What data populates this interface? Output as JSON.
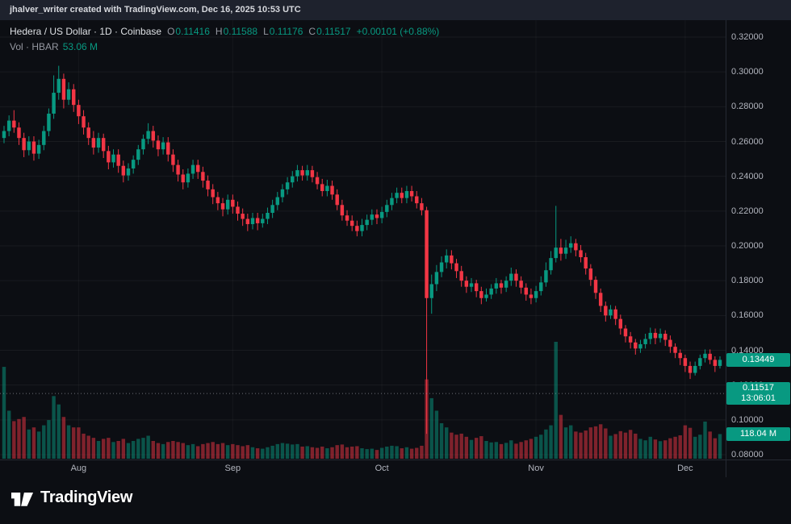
{
  "attribution": {
    "text": "jhalver_writer created with TradingView.com, Dec 16, 2025 10:53 UTC"
  },
  "legend": {
    "title": "Hedera / US Dollar · 1D · Coinbase",
    "ohlc": [
      {
        "label": "O",
        "value": "0.11416"
      },
      {
        "label": "H",
        "value": "0.11588"
      },
      {
        "label": "L",
        "value": "0.11176"
      },
      {
        "label": "C",
        "value": "0.11517"
      }
    ],
    "change": "+0.00101 (+0.88%)",
    "volume_title": "Vol · HBAR",
    "volume_value": "53.06 M"
  },
  "badges": {
    "upper_price": "0.13449",
    "last_price": "0.11517",
    "countdown": "13:06:01",
    "last_volume": "118.04 M"
  },
  "footer": {
    "brand": "TradingView"
  },
  "colors": {
    "up": "#089981",
    "down": "#f23645",
    "background": "#0c0e13",
    "strip": "#1e222d"
  },
  "chart_data": {
    "type": "candlestick",
    "symbol": "Hedera / US Dollar",
    "interval": "1D",
    "exchange": "Coinbase",
    "visible_range": "mid-July 2025 to early-December 2025",
    "last_price": 0.11517,
    "latest_bar": {
      "open": "0.11416",
      "high": "0.11588",
      "low": "0.11176",
      "close": "0.11517",
      "change": "+0.00101 (+0.88%)",
      "volume": "53.06 M"
    },
    "price_axis": {
      "min": 0.08,
      "max": 0.32,
      "tick_step": 0.02,
      "labels": [
        "0.32000",
        "0.30000",
        "0.28000",
        "0.26000",
        "0.24000",
        "0.22000",
        "0.20000",
        "0.18000",
        "0.16000",
        "0.14000",
        "0.12000",
        "0.10000",
        "0.08000"
      ]
    },
    "month_ticks": [
      {
        "label": "Aug",
        "index": 15
      },
      {
        "label": "Sep",
        "index": 46
      },
      {
        "label": "Oct",
        "index": 76
      },
      {
        "label": "Nov",
        "index": 107
      },
      {
        "label": "Dec",
        "index": 137
      }
    ],
    "volume_unit": "millions HBAR",
    "candles": {
      "columns": [
        "open",
        "high",
        "low",
        "close",
        "volume_m"
      ],
      "rows": [
        [
          0.262,
          0.269,
          0.259,
          0.266,
          440
        ],
        [
          0.266,
          0.275,
          0.263,
          0.272,
          230
        ],
        [
          0.272,
          0.278,
          0.265,
          0.268,
          180
        ],
        [
          0.268,
          0.271,
          0.258,
          0.262,
          190
        ],
        [
          0.262,
          0.265,
          0.251,
          0.255,
          200
        ],
        [
          0.255,
          0.263,
          0.252,
          0.26,
          140
        ],
        [
          0.26,
          0.263,
          0.249,
          0.253,
          150
        ],
        [
          0.253,
          0.261,
          0.25,
          0.258,
          130
        ],
        [
          0.258,
          0.269,
          0.255,
          0.266,
          160
        ],
        [
          0.266,
          0.279,
          0.263,
          0.276,
          185
        ],
        [
          0.276,
          0.298,
          0.273,
          0.288,
          300
        ],
        [
          0.288,
          0.3035,
          0.284,
          0.296,
          260
        ],
        [
          0.296,
          0.299,
          0.279,
          0.284,
          200
        ],
        [
          0.284,
          0.294,
          0.281,
          0.29,
          160
        ],
        [
          0.29,
          0.293,
          0.277,
          0.281,
          150
        ],
        [
          0.281,
          0.284,
          0.27,
          0.2745,
          150
        ],
        [
          0.2745,
          0.278,
          0.264,
          0.268,
          120
        ],
        [
          0.268,
          0.271,
          0.258,
          0.262,
          110
        ],
        [
          0.262,
          0.266,
          0.2525,
          0.2565,
          100
        ],
        [
          0.2565,
          0.265,
          0.2535,
          0.262,
          85
        ],
        [
          0.262,
          0.2645,
          0.2505,
          0.2545,
          95
        ],
        [
          0.2545,
          0.2575,
          0.244,
          0.248,
          100
        ],
        [
          0.248,
          0.2555,
          0.245,
          0.2525,
          80
        ],
        [
          0.2525,
          0.2555,
          0.242,
          0.246,
          85
        ],
        [
          0.246,
          0.249,
          0.2365,
          0.2405,
          95
        ],
        [
          0.2405,
          0.2475,
          0.2375,
          0.2445,
          75
        ],
        [
          0.2445,
          0.252,
          0.2415,
          0.2495,
          85
        ],
        [
          0.2495,
          0.258,
          0.2465,
          0.2555,
          95
        ],
        [
          0.2555,
          0.264,
          0.2525,
          0.2615,
          100
        ],
        [
          0.2615,
          0.2705,
          0.2585,
          0.266,
          110
        ],
        [
          0.266,
          0.269,
          0.2565,
          0.2605,
          85
        ],
        [
          0.2605,
          0.2635,
          0.2515,
          0.2555,
          75
        ],
        [
          0.2555,
          0.2625,
          0.2525,
          0.2595,
          70
        ],
        [
          0.2595,
          0.2625,
          0.2485,
          0.2525,
          80
        ],
        [
          0.2525,
          0.2555,
          0.2425,
          0.2465,
          85
        ],
        [
          0.2465,
          0.2495,
          0.237,
          0.241,
          80
        ],
        [
          0.241,
          0.244,
          0.2325,
          0.2365,
          75
        ],
        [
          0.2365,
          0.2445,
          0.2335,
          0.2415,
          65
        ],
        [
          0.2415,
          0.2495,
          0.2385,
          0.2465,
          70
        ],
        [
          0.2465,
          0.2495,
          0.2385,
          0.2425,
          60
        ],
        [
          0.2425,
          0.2455,
          0.2335,
          0.2375,
          70
        ],
        [
          0.2375,
          0.2405,
          0.2285,
          0.2325,
          75
        ],
        [
          0.2325,
          0.2355,
          0.224,
          0.228,
          80
        ],
        [
          0.228,
          0.231,
          0.2205,
          0.2245,
          70
        ],
        [
          0.2245,
          0.2275,
          0.217,
          0.221,
          75
        ],
        [
          0.221,
          0.2295,
          0.218,
          0.2265,
          65
        ],
        [
          0.2265,
          0.2295,
          0.2185,
          0.2225,
          70
        ],
        [
          0.2225,
          0.2255,
          0.2145,
          0.2185,
          65
        ],
        [
          0.2185,
          0.2215,
          0.2115,
          0.2155,
          60
        ],
        [
          0.2155,
          0.2185,
          0.2085,
          0.2125,
          65
        ],
        [
          0.2125,
          0.219,
          0.2095,
          0.216,
          55
        ],
        [
          0.216,
          0.219,
          0.209,
          0.213,
          50
        ],
        [
          0.213,
          0.2185,
          0.2105,
          0.2155,
          48
        ],
        [
          0.2155,
          0.222,
          0.2125,
          0.219,
          55
        ],
        [
          0.219,
          0.2265,
          0.216,
          0.2235,
          62
        ],
        [
          0.2235,
          0.231,
          0.2205,
          0.228,
          70
        ],
        [
          0.228,
          0.2355,
          0.225,
          0.2325,
          75
        ],
        [
          0.2325,
          0.2395,
          0.2295,
          0.2365,
          72
        ],
        [
          0.2365,
          0.243,
          0.2335,
          0.24,
          68
        ],
        [
          0.24,
          0.2465,
          0.237,
          0.2435,
          70
        ],
        [
          0.2435,
          0.246,
          0.2375,
          0.2405,
          58
        ],
        [
          0.2405,
          0.2465,
          0.2375,
          0.2435,
          60
        ],
        [
          0.2435,
          0.246,
          0.2365,
          0.2395,
          55
        ],
        [
          0.2395,
          0.2425,
          0.2325,
          0.2355,
          52
        ],
        [
          0.2355,
          0.2385,
          0.2285,
          0.2315,
          58
        ],
        [
          0.2315,
          0.238,
          0.2285,
          0.2345,
          50
        ],
        [
          0.2345,
          0.2375,
          0.2265,
          0.2295,
          55
        ],
        [
          0.2295,
          0.2325,
          0.2205,
          0.2235,
          65
        ],
        [
          0.2235,
          0.2265,
          0.2145,
          0.2175,
          68
        ],
        [
          0.2175,
          0.2205,
          0.2115,
          0.2145,
          55
        ],
        [
          0.2145,
          0.2175,
          0.2085,
          0.2115,
          58
        ],
        [
          0.2115,
          0.2145,
          0.2055,
          0.2085,
          60
        ],
        [
          0.2085,
          0.2155,
          0.2055,
          0.212,
          50
        ],
        [
          0.212,
          0.218,
          0.209,
          0.215,
          46
        ],
        [
          0.215,
          0.221,
          0.212,
          0.218,
          48
        ],
        [
          0.218,
          0.221,
          0.2125,
          0.216,
          42
        ],
        [
          0.216,
          0.2225,
          0.213,
          0.2195,
          52
        ],
        [
          0.2195,
          0.2265,
          0.2165,
          0.2235,
          58
        ],
        [
          0.2235,
          0.2305,
          0.2205,
          0.2275,
          62
        ],
        [
          0.2275,
          0.2335,
          0.2245,
          0.2305,
          60
        ],
        [
          0.2305,
          0.2335,
          0.2245,
          0.2275,
          50
        ],
        [
          0.2275,
          0.2345,
          0.2245,
          0.2315,
          55
        ],
        [
          0.2315,
          0.2345,
          0.2255,
          0.2285,
          48
        ],
        [
          0.2285,
          0.2315,
          0.2215,
          0.2245,
          52
        ],
        [
          0.2245,
          0.2275,
          0.2175,
          0.2205,
          62
        ],
        [
          0.2205,
          0.2225,
          0.092,
          0.17,
          380
        ],
        [
          0.17,
          0.1835,
          0.161,
          0.178,
          290
        ],
        [
          0.178,
          0.189,
          0.174,
          0.185,
          230
        ],
        [
          0.185,
          0.194,
          0.182,
          0.1905,
          170
        ],
        [
          0.1905,
          0.198,
          0.187,
          0.1945,
          150
        ],
        [
          0.1945,
          0.1975,
          0.1865,
          0.19,
          125
        ],
        [
          0.19,
          0.1925,
          0.1815,
          0.1855,
          115
        ],
        [
          0.1855,
          0.1885,
          0.1765,
          0.18,
          120
        ],
        [
          0.18,
          0.1825,
          0.173,
          0.1765,
          105
        ],
        [
          0.1765,
          0.1815,
          0.1735,
          0.1785,
          90
        ],
        [
          0.1785,
          0.1805,
          0.1705,
          0.174,
          100
        ],
        [
          0.174,
          0.1765,
          0.1665,
          0.17,
          108
        ],
        [
          0.17,
          0.1755,
          0.168,
          0.172,
          85
        ],
        [
          0.172,
          0.178,
          0.1695,
          0.1755,
          78
        ],
        [
          0.1755,
          0.1815,
          0.1725,
          0.1785,
          80
        ],
        [
          0.1785,
          0.1805,
          0.1725,
          0.176,
          70
        ],
        [
          0.176,
          0.1825,
          0.1735,
          0.18,
          76
        ],
        [
          0.18,
          0.1875,
          0.177,
          0.184,
          88
        ],
        [
          0.184,
          0.1865,
          0.1765,
          0.18,
          72
        ],
        [
          0.18,
          0.1825,
          0.1725,
          0.176,
          80
        ],
        [
          0.176,
          0.1785,
          0.1685,
          0.172,
          88
        ],
        [
          0.172,
          0.1755,
          0.1665,
          0.17,
          95
        ],
        [
          0.17,
          0.177,
          0.1675,
          0.174,
          105
        ],
        [
          0.174,
          0.1825,
          0.1715,
          0.179,
          115
        ],
        [
          0.179,
          0.1905,
          0.1765,
          0.186,
          140
        ],
        [
          0.186,
          0.197,
          0.1835,
          0.193,
          160
        ],
        [
          0.193,
          0.223,
          0.1905,
          0.199,
          560
        ],
        [
          0.199,
          0.204,
          0.1915,
          0.1955,
          210
        ],
        [
          0.1955,
          0.2035,
          0.1925,
          0.199,
          150
        ],
        [
          0.199,
          0.2055,
          0.196,
          0.2015,
          160
        ],
        [
          0.2015,
          0.204,
          0.194,
          0.1975,
          130
        ],
        [
          0.1975,
          0.2005,
          0.1905,
          0.1935,
          125
        ],
        [
          0.1935,
          0.196,
          0.1835,
          0.187,
          135
        ],
        [
          0.187,
          0.1895,
          0.177,
          0.1805,
          150
        ],
        [
          0.1805,
          0.1825,
          0.1695,
          0.173,
          155
        ],
        [
          0.173,
          0.1755,
          0.162,
          0.1655,
          165
        ],
        [
          0.1655,
          0.168,
          0.1565,
          0.16,
          145
        ],
        [
          0.16,
          0.166,
          0.158,
          0.1635,
          110
        ],
        [
          0.1635,
          0.1655,
          0.1545,
          0.158,
          118
        ],
        [
          0.158,
          0.1605,
          0.149,
          0.1525,
          132
        ],
        [
          0.1525,
          0.1545,
          0.1445,
          0.148,
          125
        ],
        [
          0.148,
          0.1505,
          0.141,
          0.1445,
          138
        ],
        [
          0.1445,
          0.1465,
          0.1375,
          0.141,
          120
        ],
        [
          0.141,
          0.146,
          0.1385,
          0.1435,
          95
        ],
        [
          0.1435,
          0.1495,
          0.141,
          0.1465,
          88
        ],
        [
          0.1465,
          0.153,
          0.1435,
          0.15,
          105
        ],
        [
          0.15,
          0.1525,
          0.1435,
          0.147,
          92
        ],
        [
          0.147,
          0.1525,
          0.1445,
          0.1495,
          84
        ],
        [
          0.1495,
          0.1515,
          0.1425,
          0.146,
          88
        ],
        [
          0.146,
          0.1485,
          0.1385,
          0.142,
          98
        ],
        [
          0.142,
          0.144,
          0.1355,
          0.1385,
          105
        ],
        [
          0.1385,
          0.1405,
          0.1315,
          0.1355,
          112
        ],
        [
          0.1355,
          0.1375,
          0.1275,
          0.131,
          160
        ],
        [
          0.131,
          0.1335,
          0.1235,
          0.127,
          148
        ],
        [
          0.127,
          0.1335,
          0.1255,
          0.131,
          105
        ],
        [
          0.131,
          0.1375,
          0.129,
          0.1355,
          115
        ],
        [
          0.1355,
          0.1405,
          0.133,
          0.138,
          178
        ],
        [
          0.138,
          0.1405,
          0.132,
          0.1345,
          130
        ],
        [
          0.1345,
          0.1365,
          0.1275,
          0.131,
          98
        ],
        [
          0.131,
          0.1365,
          0.1295,
          0.13449,
          118.04
        ]
      ]
    }
  }
}
